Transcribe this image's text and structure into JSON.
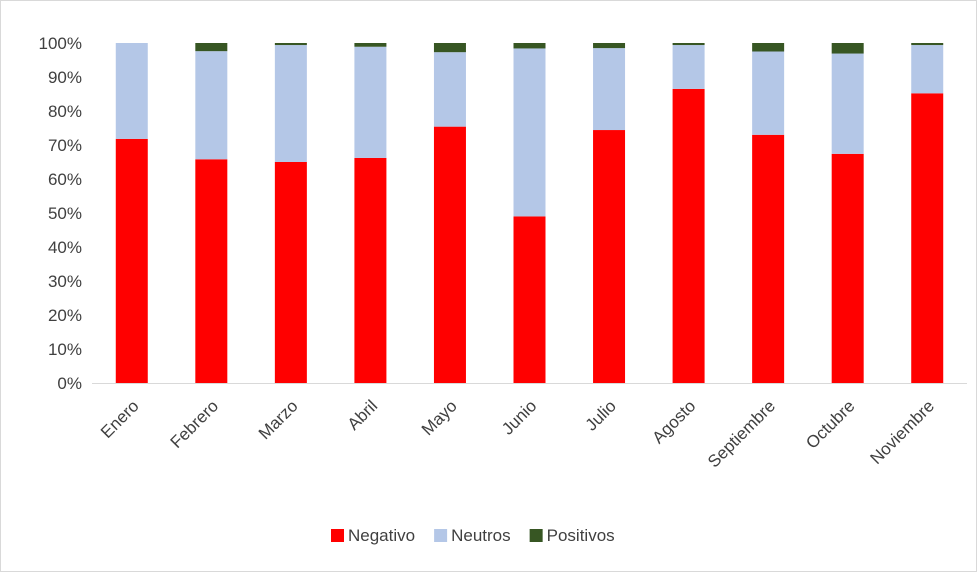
{
  "chart_data": {
    "type": "bar",
    "stacked": true,
    "percent_stacked": true,
    "categories": [
      "Enero",
      "Febrero",
      "Marzo",
      "Abril",
      "Mayo",
      "Junio",
      "Julio",
      "Agosto",
      "Septiembre",
      "Octubre",
      "Noviembre"
    ],
    "series": [
      {
        "name": "Negativo",
        "color": "#ff0000",
        "values": [
          71.8,
          65.8,
          65.0,
          66.2,
          75.4,
          49.0,
          74.4,
          86.5,
          73.0,
          67.4,
          85.2
        ]
      },
      {
        "name": "Neutros",
        "color": "#b4c7e7",
        "values": [
          28.2,
          31.8,
          34.4,
          32.7,
          21.9,
          49.4,
          24.1,
          12.9,
          24.5,
          29.5,
          14.2
        ]
      },
      {
        "name": "Positivos",
        "color": "#375623",
        "values": [
          0.0,
          2.4,
          0.6,
          1.1,
          2.7,
          1.6,
          1.5,
          0.6,
          2.5,
          3.1,
          0.6
        ]
      }
    ],
    "y_ticks": [
      "0%",
      "10%",
      "20%",
      "30%",
      "40%",
      "50%",
      "60%",
      "70%",
      "80%",
      "90%",
      "100%"
    ],
    "ylim": [
      0,
      100
    ],
    "grid": false,
    "legend_position": "bottom",
    "title": "",
    "xlabel": "",
    "ylabel": ""
  }
}
